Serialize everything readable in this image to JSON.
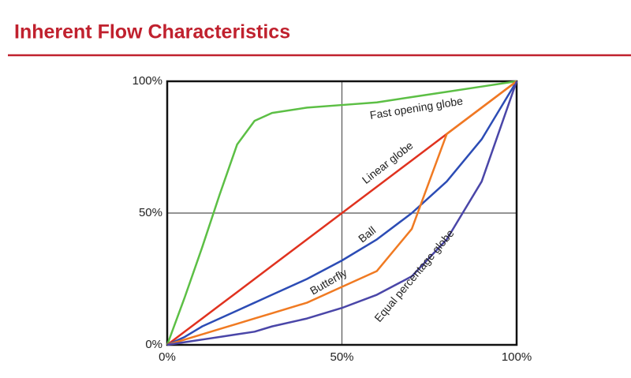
{
  "chart_data": {
    "type": "line",
    "title": "Inherent Flow Characteristics",
    "x": [
      0,
      5,
      10,
      15,
      20,
      25,
      30,
      40,
      50,
      60,
      70,
      80,
      90,
      100
    ],
    "series": [
      {
        "name": "Fast opening globe",
        "color": "#5cbf45",
        "values": [
          0,
          18,
          37,
          57,
          76,
          85,
          88,
          90,
          91,
          92,
          94,
          96,
          98,
          100
        ]
      },
      {
        "name": "Linear globe",
        "color": "#e0321f",
        "values": [
          0,
          5,
          10,
          15,
          20,
          25,
          30,
          40,
          50,
          60,
          70,
          80,
          90,
          100
        ]
      },
      {
        "name": "Ball",
        "color": "#2c4cb5",
        "values": [
          0,
          3,
          7,
          10,
          13,
          16,
          19,
          25,
          32,
          40,
          50,
          62,
          78,
          100
        ]
      },
      {
        "name": "Butterfly",
        "color": "#f07a22",
        "values": [
          0,
          2,
          4,
          6,
          8,
          10,
          12,
          16,
          22,
          28,
          44,
          80,
          90,
          100
        ]
      },
      {
        "name": "Equal percentage globe",
        "color": "#4a46a8",
        "values": [
          0,
          1,
          2,
          3,
          4,
          5,
          7,
          10,
          14,
          19,
          26,
          40,
          62,
          100
        ]
      }
    ],
    "xlim": [
      0,
      100
    ],
    "ylim": [
      0,
      100
    ],
    "xticks": [
      {
        "value": 0,
        "label": "0%"
      },
      {
        "value": 50,
        "label": "50%"
      },
      {
        "value": 100,
        "label": "100%"
      }
    ],
    "yticks": [
      {
        "value": 0,
        "label": "0%"
      },
      {
        "value": 50,
        "label": "50%"
      },
      {
        "value": 100,
        "label": "100%"
      }
    ],
    "grid": true
  }
}
